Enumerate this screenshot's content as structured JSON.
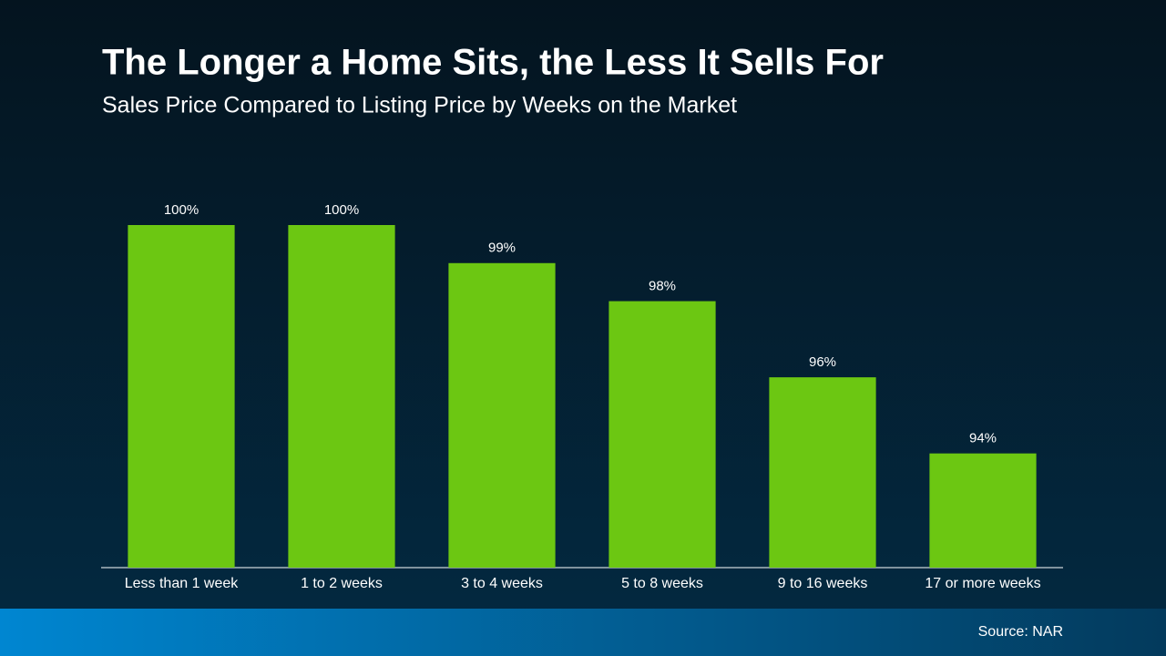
{
  "chart_data": {
    "type": "bar",
    "title": "The Longer a Home Sits, the Less It Sells For",
    "subtitle": "Sales Price Compared to Listing Price by Weeks on the Market",
    "categories": [
      "Less than 1 week",
      "1 to 2 weeks",
      "3 to 4 weeks",
      "5 to 8 weeks",
      "9 to 16 weeks",
      "17 or more weeks"
    ],
    "values": [
      100,
      100,
      99,
      98,
      96,
      94
    ],
    "value_labels": [
      "100%",
      "100%",
      "99%",
      "98%",
      "96%",
      "94%"
    ],
    "color": "#6cc712",
    "ylim": [
      91,
      100
    ],
    "source": "Source: NAR"
  }
}
